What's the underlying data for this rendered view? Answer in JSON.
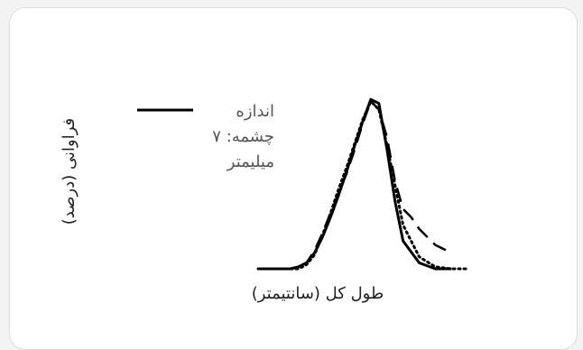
{
  "chart_data": {
    "type": "line",
    "title": "",
    "xlabel": "طول کل (سانتیمتر)",
    "ylabel": "فراوانی (درصد)",
    "legend": {
      "position": "top-left",
      "entries": [
        {
          "label_lines": [
            "اندازه",
            "چشمه: ۷",
            "میلیمتر"
          ],
          "style": "solid"
        }
      ]
    },
    "grid": false,
    "series": [
      {
        "style": "solid",
        "x": [
          0,
          4,
          8,
          10,
          12,
          14,
          16,
          18,
          20,
          22,
          24,
          26,
          28,
          30,
          32,
          34,
          36,
          40,
          44,
          48
        ],
        "values": [
          0,
          0,
          0,
          1,
          3,
          8,
          16,
          26,
          37,
          49,
          62,
          74,
          85,
          83,
          60,
          34,
          14,
          3,
          0,
          0
        ]
      },
      {
        "style": "dotted",
        "x": [
          0,
          4,
          8,
          10,
          12,
          14,
          16,
          18,
          20,
          22,
          24,
          26,
          28,
          30,
          32,
          34,
          36,
          40,
          44,
          48,
          52
        ],
        "values": [
          0,
          0,
          0,
          0,
          2,
          7,
          17,
          28,
          40,
          51,
          63,
          75,
          84,
          80,
          62,
          42,
          22,
          6,
          1,
          0,
          0
        ]
      },
      {
        "style": "dashed",
        "x": [
          0,
          4,
          8,
          10,
          12,
          14,
          16,
          18,
          20,
          22,
          24,
          26,
          28,
          30,
          32,
          34,
          36,
          38,
          40,
          44,
          48
        ],
        "values": [
          0,
          0,
          0,
          1,
          3,
          9,
          18,
          28,
          38,
          48,
          60,
          73,
          84,
          80,
          66,
          44,
          30,
          26,
          20,
          12,
          8
        ]
      }
    ]
  }
}
